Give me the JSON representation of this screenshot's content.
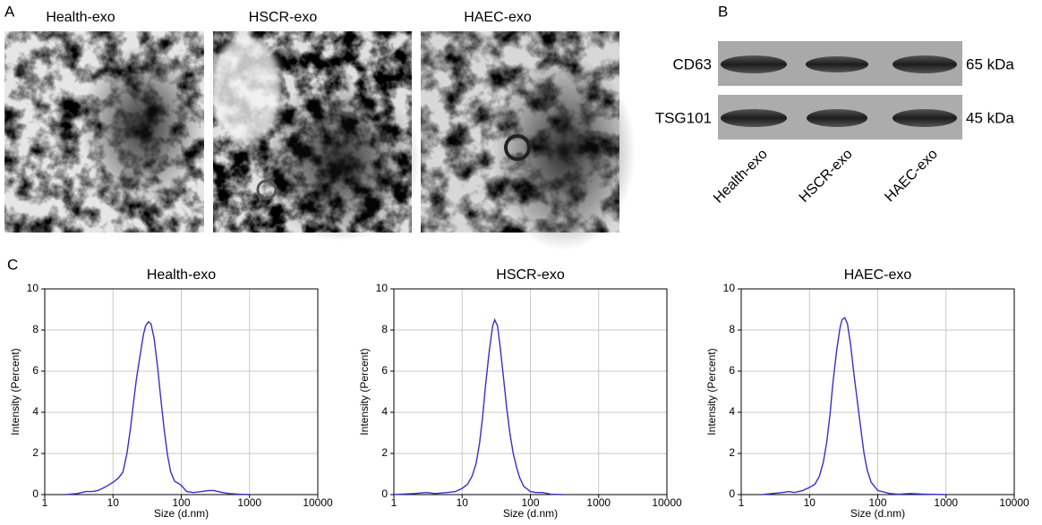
{
  "panel_labels": [
    "A",
    "B",
    "C"
  ],
  "tem": {
    "labels": [
      "Health-exo",
      "HSCR-exo",
      "HAEC-exo"
    ]
  },
  "blot": {
    "rows": [
      {
        "name": "CD63",
        "size": "65 kDa"
      },
      {
        "name": "TSG101",
        "size": "45 kDa"
      }
    ],
    "lanes": [
      "Health-exo",
      "HSCR-exo",
      "HAEC-exo"
    ]
  },
  "chart_data": [
    {
      "type": "line",
      "title": "Health-exo",
      "x_label": "Size (d.nm)",
      "y_label": "Intensity (Percent)",
      "log_x": true,
      "grid": true,
      "color": "#3a2fc8",
      "xlim": [
        1,
        10000
      ],
      "xticks": [
        1,
        10,
        100,
        1000,
        10000
      ],
      "ylim": [
        0,
        10
      ],
      "yticks": [
        0,
        2,
        4,
        6,
        8,
        10
      ],
      "x": [
        2,
        3,
        4,
        5,
        6,
        7,
        8,
        10,
        12,
        14,
        16,
        18,
        20,
        22,
        25,
        28,
        30,
        33,
        36,
        40,
        45,
        50,
        56,
        63,
        70,
        80,
        90,
        100,
        120,
        150,
        200,
        250,
        300,
        400,
        500,
        700,
        1000
      ],
      "values": [
        0,
        0.05,
        0.15,
        0.15,
        0.2,
        0.3,
        0.4,
        0.6,
        0.8,
        1.1,
        2.0,
        3.2,
        4.5,
        5.6,
        6.8,
        7.8,
        8.2,
        8.4,
        8.3,
        7.6,
        6.2,
        4.7,
        3.2,
        1.9,
        1.1,
        0.65,
        0.55,
        0.45,
        0.15,
        0.1,
        0.15,
        0.2,
        0.2,
        0.1,
        0.05,
        0.02,
        0
      ]
    },
    {
      "type": "line",
      "title": "HSCR-exo",
      "x_label": "Size (d.nm)",
      "y_label": "Intensity (Percent)",
      "log_x": true,
      "grid": true,
      "color": "#3a2fc8",
      "xlim": [
        1,
        10000
      ],
      "xticks": [
        1,
        10,
        100,
        1000,
        10000
      ],
      "ylim": [
        0,
        10
      ],
      "yticks": [
        0,
        2,
        4,
        6,
        8,
        10
      ],
      "x": [
        1,
        2,
        3,
        4,
        6,
        8,
        10,
        12,
        14,
        16,
        18,
        20,
        22,
        25,
        28,
        30,
        33,
        36,
        40,
        45,
        50,
        56,
        63,
        70,
        80,
        100,
        120,
        150,
        200,
        300
      ],
      "values": [
        0,
        0.05,
        0.1,
        0.05,
        0.1,
        0.15,
        0.3,
        0.5,
        0.9,
        1.5,
        2.5,
        3.8,
        5.3,
        7.0,
        8.2,
        8.5,
        8.2,
        7.2,
        5.8,
        4.2,
        3.0,
        2.0,
        1.3,
        0.8,
        0.4,
        0.15,
        0.1,
        0.1,
        0.02,
        0
      ]
    },
    {
      "type": "line",
      "title": "HAEC-exo",
      "x_label": "Size (d.nm)",
      "y_label": "Intensity (Percent)",
      "log_x": true,
      "grid": true,
      "color": "#3a2fc8",
      "xlim": [
        1,
        10000
      ],
      "xticks": [
        1,
        10,
        100,
        1000,
        10000
      ],
      "ylim": [
        0,
        10
      ],
      "yticks": [
        0,
        2,
        4,
        6,
        8,
        10
      ],
      "x": [
        2,
        4,
        5,
        6,
        8,
        10,
        12,
        14,
        16,
        18,
        20,
        22,
        25,
        28,
        30,
        33,
        36,
        40,
        45,
        50,
        56,
        63,
        70,
        80,
        100,
        150,
        200,
        300,
        500,
        1000
      ],
      "values": [
        0,
        0.1,
        0.15,
        0.1,
        0.2,
        0.35,
        0.5,
        0.9,
        1.6,
        2.6,
        3.9,
        5.4,
        7.0,
        8.1,
        8.5,
        8.6,
        8.3,
        7.3,
        5.8,
        4.6,
        3.3,
        2.0,
        1.2,
        0.6,
        0.2,
        0.05,
        0.02,
        0.05,
        0.02,
        0
      ]
    }
  ]
}
